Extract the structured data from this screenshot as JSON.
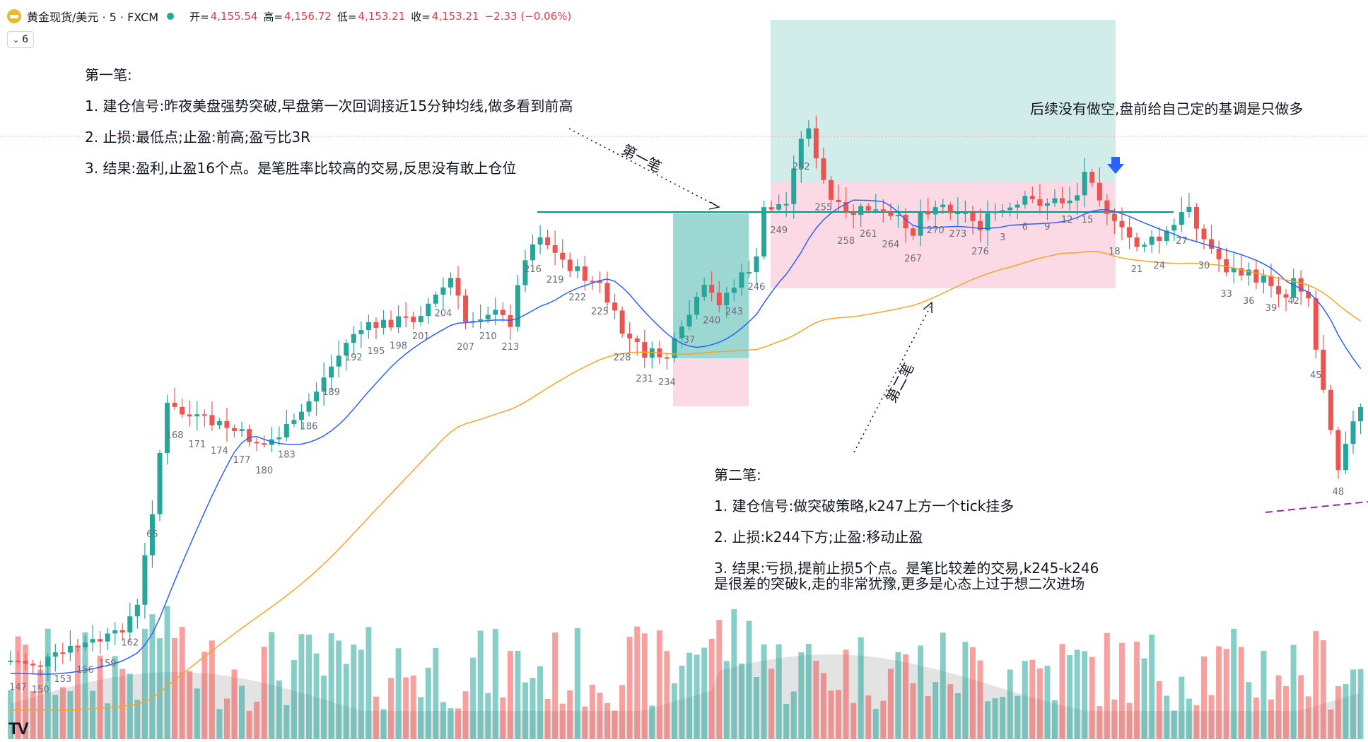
{
  "header": {
    "symbol": "黄金现货/美元 · 5 · FXCM",
    "open_label": "开=",
    "open_value": "4,155.54",
    "high_label": "高=",
    "high_value": "4,156.72",
    "low_label": "低=",
    "low_value": "4,153.21",
    "close_label": "收=",
    "close_value": "4,153.21",
    "change": "−2.33 (−0.06%)",
    "indicator_count": "6"
  },
  "colors": {
    "up": "#26a69a",
    "down": "#ef5350",
    "ma_fast": "#2962ff",
    "ma_slow": "#f5a623",
    "profit_zone": "#b2dfdb",
    "loss_zone": "#f8bbd0",
    "buy_arrow": "#2962ff"
  },
  "annotations": {
    "note1_title": "第一笔:",
    "note1_l1": "1. 建仓信号:昨夜美盘强势突破,早盘第一次回调接近15分钟均线,做多看到前高",
    "note1_l2": "2. 止损:最低点;止盈:前高;盈亏比3R",
    "note1_l3": "3. 结果:盈利,止盈16个点。是笔胜率比较高的交易,反思没有敢上仓位",
    "note_right": "后续没有做空,盘前给自己定的基调是只做多",
    "arrow1_label": "第一笔",
    "arrow2_label": "第二笔",
    "note2_title": "第二笔:",
    "note2_l1": "1. 建仓信号:做突破策略,k247上方一个tick挂多",
    "note2_l2": "2. 止损:k244下方;止盈:移动止盈",
    "note2_l3a": "3. 结果:亏损,提前止损5个点。是笔比较差的交易,k245-k246",
    "note2_l3b": "是很差的突破k,走的非常犹豫,更多是心态上过于想二次进场"
  },
  "logo_text": "TV",
  "chart_data": {
    "type": "candlestick",
    "bar_labels": [
      {
        "label": "147",
        "bar": 147
      },
      {
        "label": "150",
        "bar": 150
      },
      {
        "label": "153",
        "bar": 153
      },
      {
        "label": "156",
        "bar": 156
      },
      {
        "label": "159",
        "bar": 159
      },
      {
        "label": "162",
        "bar": 162
      },
      {
        "label": "65",
        "bar": 165
      },
      {
        "label": "168",
        "bar": 168
      },
      {
        "label": "171",
        "bar": 171
      },
      {
        "label": "174",
        "bar": 174
      },
      {
        "label": "177",
        "bar": 177
      },
      {
        "label": "180",
        "bar": 180
      },
      {
        "label": "183",
        "bar": 183
      },
      {
        "label": "186",
        "bar": 186
      },
      {
        "label": "189",
        "bar": 189
      },
      {
        "label": "192",
        "bar": 192
      },
      {
        "label": "195",
        "bar": 195
      },
      {
        "label": "198",
        "bar": 198
      },
      {
        "label": "201",
        "bar": 201
      },
      {
        "label": "204",
        "bar": 204
      },
      {
        "label": "207",
        "bar": 207
      },
      {
        "label": "210",
        "bar": 210
      },
      {
        "label": "213",
        "bar": 213
      },
      {
        "label": "216",
        "bar": 216
      },
      {
        "label": "219",
        "bar": 219
      },
      {
        "label": "222",
        "bar": 222
      },
      {
        "label": "225",
        "bar": 225
      },
      {
        "label": "228",
        "bar": 228
      },
      {
        "label": "231",
        "bar": 231
      },
      {
        "label": "234",
        "bar": 234
      },
      {
        "label": "37",
        "bar": 237
      },
      {
        "label": "240",
        "bar": 240
      },
      {
        "label": "243",
        "bar": 243
      },
      {
        "label": "246",
        "bar": 246
      },
      {
        "label": "249",
        "bar": 249
      },
      {
        "label": "252",
        "bar": 252
      },
      {
        "label": "255",
        "bar": 255
      },
      {
        "label": "258",
        "bar": 258
      },
      {
        "label": "261",
        "bar": 261
      },
      {
        "label": "264",
        "bar": 264
      },
      {
        "label": "267",
        "bar": 267
      },
      {
        "label": "270",
        "bar": 270
      },
      {
        "label": "273",
        "bar": 273
      },
      {
        "label": "276",
        "bar": 276
      },
      {
        "label": "3",
        "bar": 279
      },
      {
        "label": "6",
        "bar": 282
      },
      {
        "label": "9",
        "bar": 285
      },
      {
        "label": "12 · 15",
        "bar": 289
      },
      {
        "label": "18",
        "bar": 294
      },
      {
        "label": "21",
        "bar": 297
      },
      {
        "label": "24",
        "bar": 300
      },
      {
        "label": "27",
        "bar": 303
      },
      {
        "label": "30",
        "bar": 306
      },
      {
        "label": "33",
        "bar": 309
      },
      {
        "label": "36",
        "bar": 312
      },
      {
        "label": "39",
        "bar": 315
      },
      {
        "label": "42",
        "bar": 318
      },
      {
        "label": "45",
        "bar": 321
      },
      {
        "label": "48",
        "bar": 324
      }
    ],
    "trades": [
      {
        "name": "第一笔",
        "side": "long",
        "entry_bar": 237,
        "exit_bar": 246,
        "result": "盈利,止盈16个点",
        "rr": "3R"
      },
      {
        "name": "第二笔",
        "side": "long",
        "entry_bar": 247,
        "exit_bar": 292,
        "result": "亏损,提前止损5个点"
      }
    ],
    "series": [
      {
        "role": "fast moving average",
        "color": "#2962ff"
      },
      {
        "role": "slow moving average",
        "color": "#f5a623"
      }
    ],
    "volume": true,
    "grid": false,
    "legend": "none"
  }
}
